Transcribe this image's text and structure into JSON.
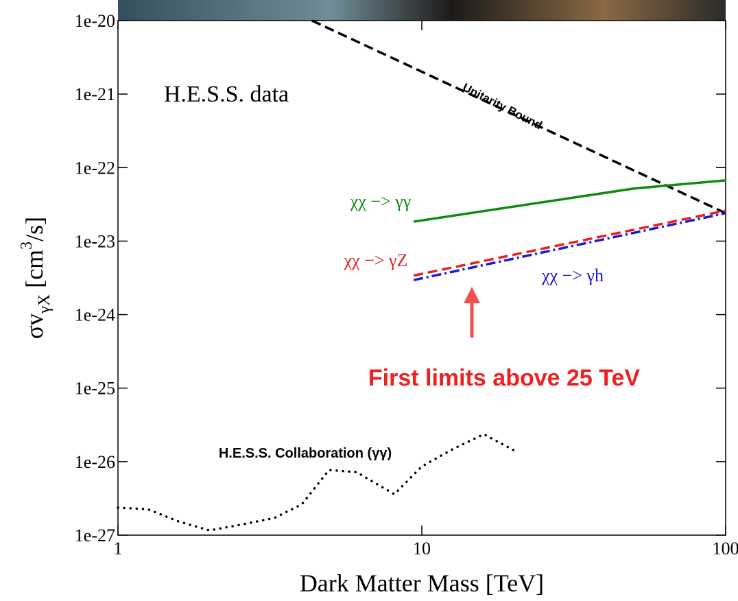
{
  "chart_data": {
    "type": "line",
    "title": "H.E.S.S. data",
    "annotation": "First limits above 25 TeV",
    "xlabel": "Dark Matter Mass [TeV]",
    "ylabel": {
      "main": "σv",
      "sub": "γX",
      "unit_pre": " [cm",
      "unit_sup": "3",
      "unit_post": "/s]"
    },
    "xscale": "log",
    "yscale": "log",
    "xlim": [
      1,
      100
    ],
    "ylim": [
      1e-27,
      1e-20
    ],
    "xticks": [
      1,
      10,
      100
    ],
    "yticks": [
      1e-27,
      1e-26,
      1e-25,
      1e-24,
      1e-23,
      1e-22,
      1e-21,
      1e-20
    ],
    "series": [
      {
        "name": "Unitarity Bound",
        "color": "#000000",
        "style": "dashed",
        "x": [
          4.35,
          100
        ],
        "values": [
          1e-20,
          2.4e-23
        ]
      },
      {
        "name": "χχ −> γγ",
        "color": "#108a10",
        "style": "solid",
        "x": [
          9.4,
          50,
          100
        ],
        "values": [
          1.84e-23,
          5.2e-23,
          6.7e-23
        ]
      },
      {
        "name": "χχ −> γZ",
        "color": "#e82020",
        "style": "dashed",
        "x": [
          9.4,
          100
        ],
        "values": [
          3.4e-24,
          2.6e-23
        ]
      },
      {
        "name": "χχ −> γh",
        "color": "#1a1ad0",
        "style": "dashdot",
        "x": [
          9.4,
          100
        ],
        "values": [
          2.95e-24,
          2.4e-23
        ]
      },
      {
        "name": "H.E.S.S. Collaboration (γγ)",
        "color": "#000000",
        "style": "dotted",
        "x": [
          1,
          1.25,
          1.58,
          2.0,
          2.52,
          3.27,
          4.03,
          4.95,
          6.1,
          8.12,
          10.0,
          12.6,
          16.0,
          20.2
        ],
        "values": [
          2.36e-27,
          2.26e-27,
          1.54e-27,
          1.16e-27,
          1.38e-27,
          1.71e-27,
          2.63e-27,
          7.7e-27,
          7.2e-27,
          3.6e-27,
          8.6e-27,
          1.47e-26,
          2.36e-26,
          1.41e-26
        ]
      }
    ]
  }
}
